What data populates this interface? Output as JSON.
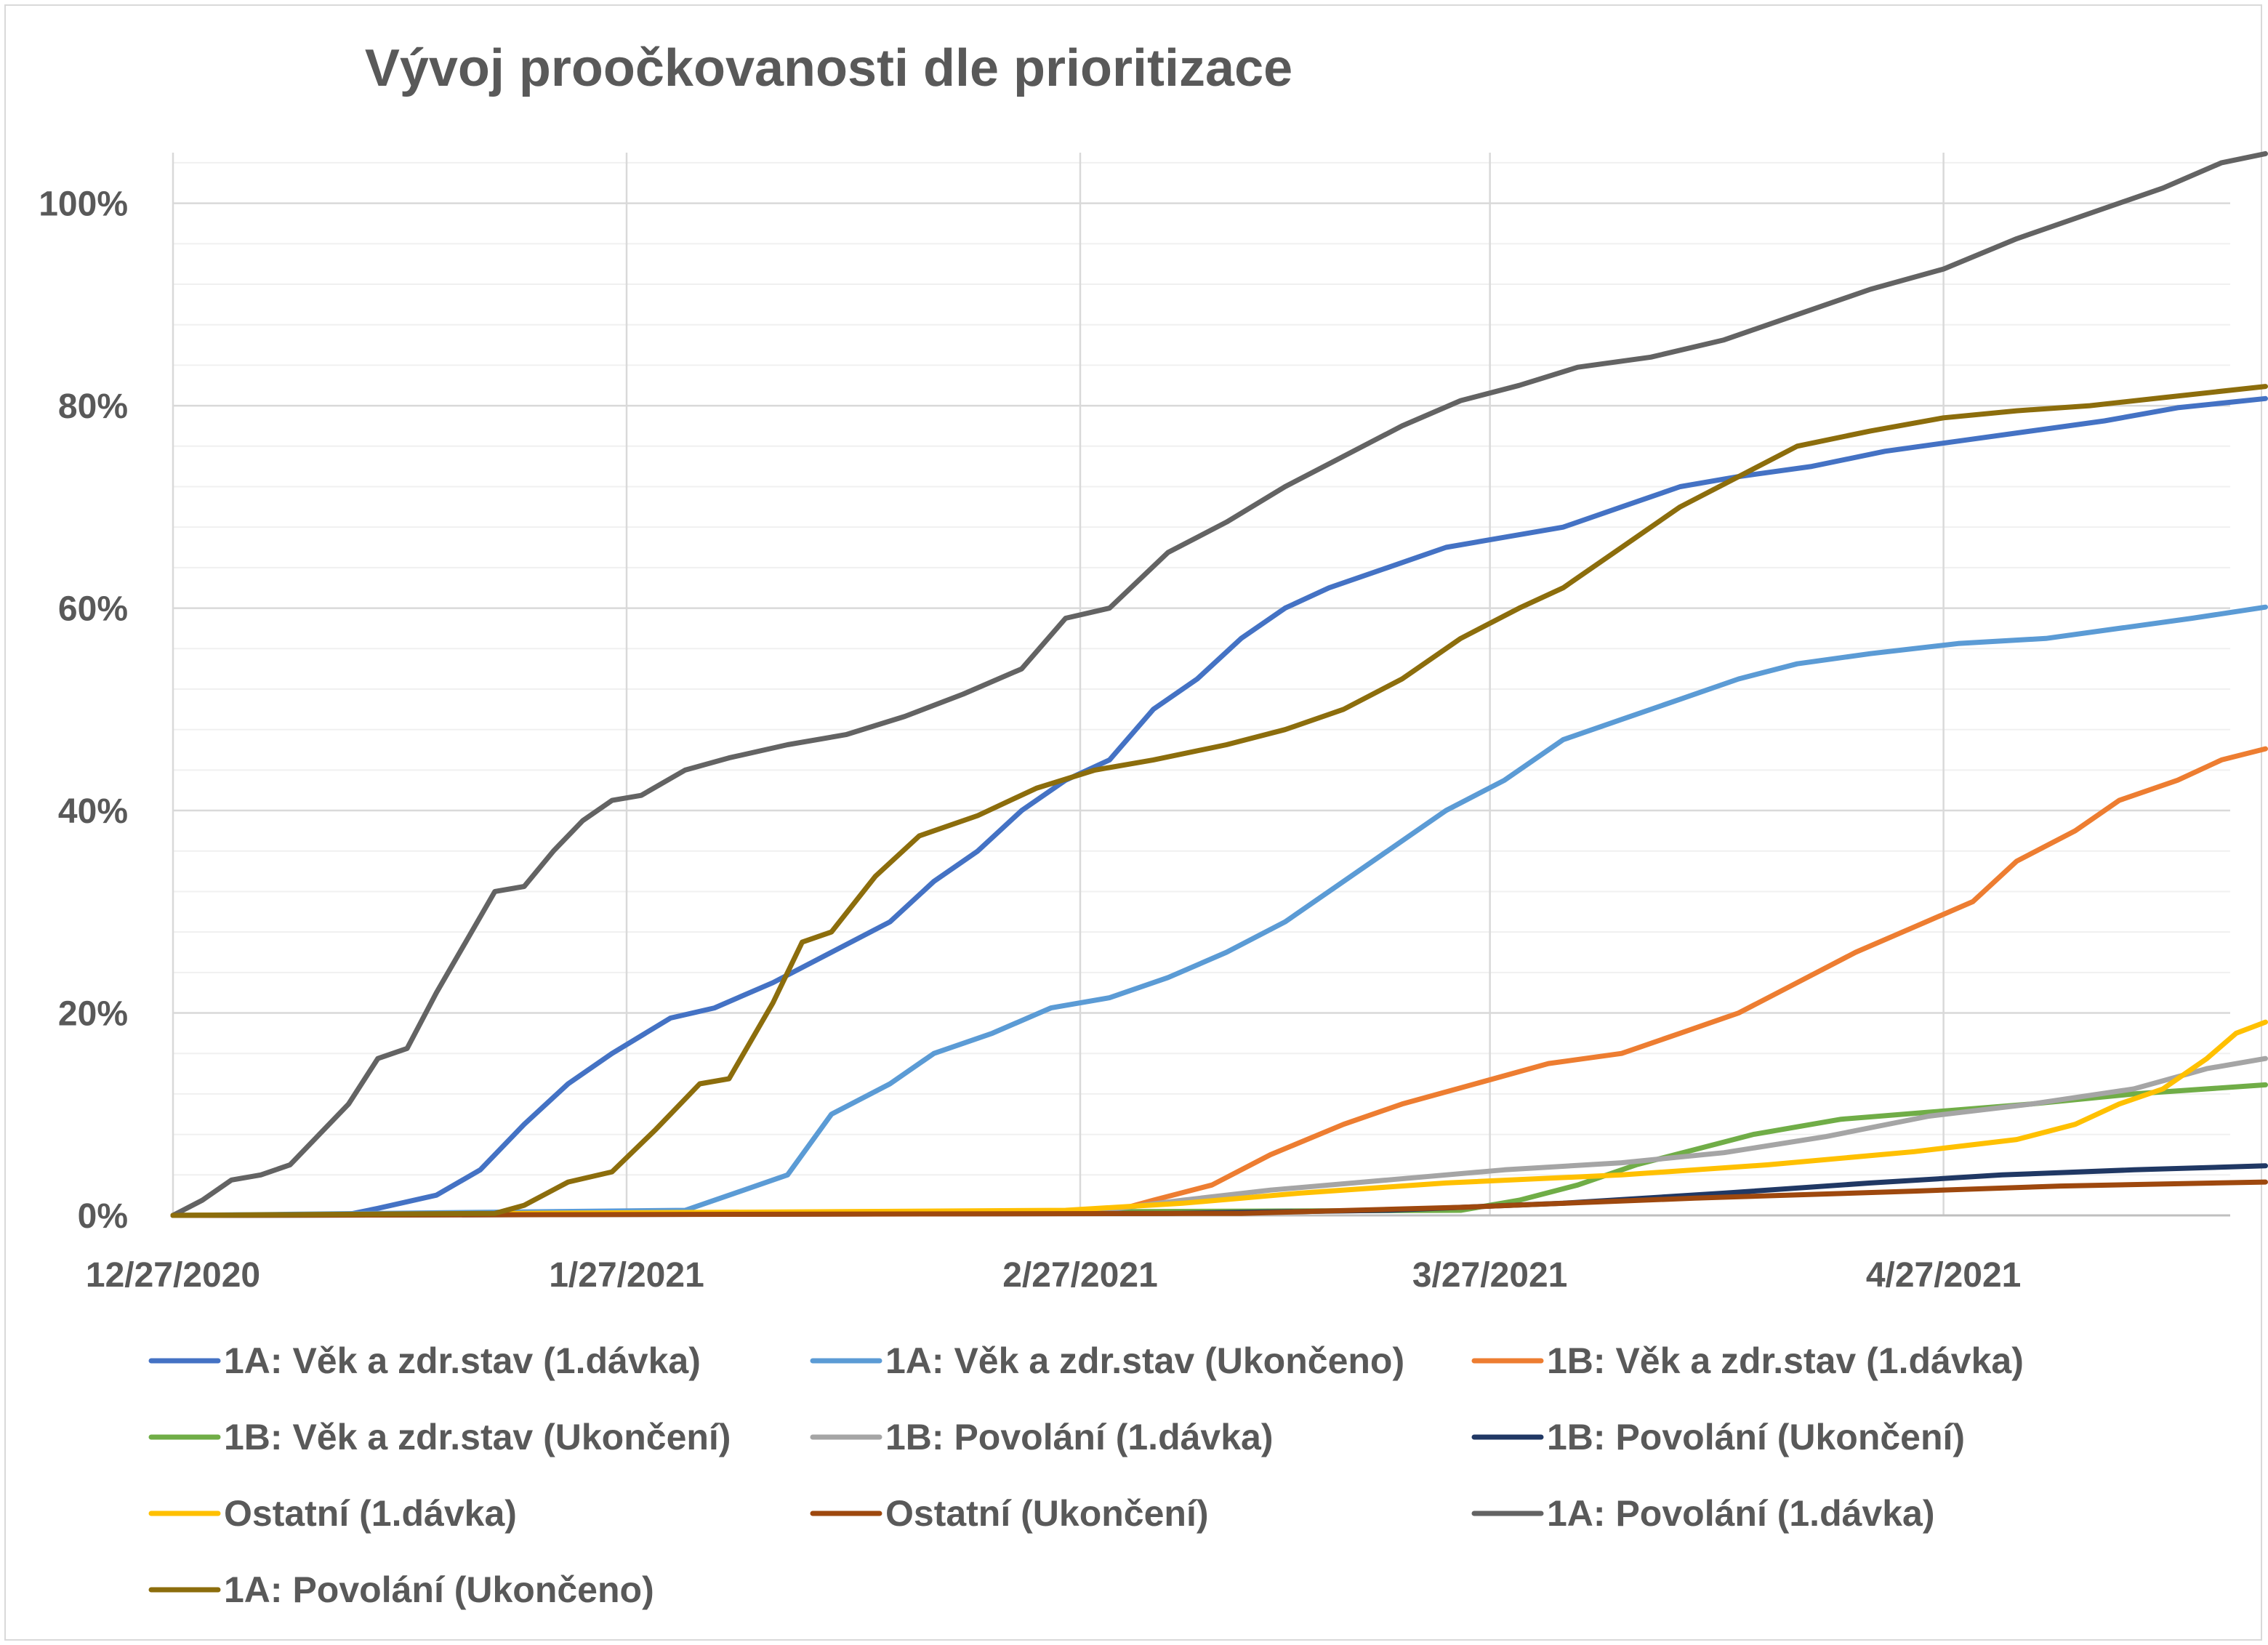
{
  "chart_data": {
    "type": "line",
    "title": "Vývoj proočkovanosti dle prioritizace",
    "xlabel": "",
    "ylabel": "",
    "x_ticks": [
      "12/27/2020",
      "1/27/2021",
      "2/27/2021",
      "3/27/2021",
      "4/27/2021"
    ],
    "x_range": [
      "2020-12-27",
      "2021-05-19"
    ],
    "y_ticks": [
      "0%",
      "20%",
      "40%",
      "60%",
      "80%",
      "100%"
    ],
    "ylim": [
      0,
      1.05
    ],
    "grid": true,
    "legend_position": "bottom",
    "series": [
      {
        "name": "1A: Věk a zdr.stav (1.dávka)",
        "color": "#4472c4",
        "points": [
          [
            "2020-12-27",
            0
          ],
          [
            "2021-01-08",
            0.001
          ],
          [
            "2021-01-10",
            0.007
          ],
          [
            "2021-01-14",
            0.02
          ],
          [
            "2021-01-17",
            0.045
          ],
          [
            "2021-01-20",
            0.09
          ],
          [
            "2021-01-23",
            0.13
          ],
          [
            "2021-01-26",
            0.16
          ],
          [
            "2021-01-30",
            0.195
          ],
          [
            "2021-02-02",
            0.205
          ],
          [
            "2021-02-06",
            0.23
          ],
          [
            "2021-02-10",
            0.26
          ],
          [
            "2021-02-14",
            0.29
          ],
          [
            "2021-02-17",
            0.33
          ],
          [
            "2021-02-20",
            0.36
          ],
          [
            "2021-02-23",
            0.4
          ],
          [
            "2021-02-26",
            0.43
          ],
          [
            "2021-03-01",
            0.45
          ],
          [
            "2021-03-04",
            0.5
          ],
          [
            "2021-03-07",
            0.53
          ],
          [
            "2021-03-10",
            0.57
          ],
          [
            "2021-03-13",
            0.6
          ],
          [
            "2021-03-16",
            0.62
          ],
          [
            "2021-03-20",
            0.64
          ],
          [
            "2021-03-24",
            0.66
          ],
          [
            "2021-03-28",
            0.67
          ],
          [
            "2021-04-01",
            0.68
          ],
          [
            "2021-04-05",
            0.7
          ],
          [
            "2021-04-09",
            0.72
          ],
          [
            "2021-04-13",
            0.73
          ],
          [
            "2021-04-18",
            0.74
          ],
          [
            "2021-04-23",
            0.755
          ],
          [
            "2021-04-28",
            0.765
          ],
          [
            "2021-05-03",
            0.775
          ],
          [
            "2021-05-08",
            0.785
          ],
          [
            "2021-05-13",
            0.798
          ],
          [
            "2021-05-19",
            0.807
          ]
        ]
      },
      {
        "name": "1A: Věk a zdr.stav (Ukončeno)",
        "color": "#5b9bd5",
        "points": [
          [
            "2020-12-27",
            0
          ],
          [
            "2021-01-31",
            0.005
          ],
          [
            "2021-02-03",
            0.02
          ],
          [
            "2021-02-07",
            0.04
          ],
          [
            "2021-02-10",
            0.1
          ],
          [
            "2021-02-14",
            0.13
          ],
          [
            "2021-02-17",
            0.16
          ],
          [
            "2021-02-21",
            0.18
          ],
          [
            "2021-02-25",
            0.205
          ],
          [
            "2021-03-01",
            0.215
          ],
          [
            "2021-03-05",
            0.235
          ],
          [
            "2021-03-09",
            0.26
          ],
          [
            "2021-03-13",
            0.29
          ],
          [
            "2021-03-17",
            0.33
          ],
          [
            "2021-03-20",
            0.36
          ],
          [
            "2021-03-24",
            0.4
          ],
          [
            "2021-03-28",
            0.43
          ],
          [
            "2021-04-01",
            0.47
          ],
          [
            "2021-04-05",
            0.49
          ],
          [
            "2021-04-09",
            0.51
          ],
          [
            "2021-04-13",
            0.53
          ],
          [
            "2021-04-17",
            0.545
          ],
          [
            "2021-04-22",
            0.555
          ],
          [
            "2021-04-28",
            0.565
          ],
          [
            "2021-05-04",
            0.57
          ],
          [
            "2021-05-09",
            0.58
          ],
          [
            "2021-05-14",
            0.59
          ],
          [
            "2021-05-19",
            0.601
          ]
        ]
      },
      {
        "name": "1B: Věk a zdr.stav (1.dávka)",
        "color": "#ed7d31",
        "points": [
          [
            "2020-12-27",
            0
          ],
          [
            "2021-03-01",
            0.003
          ],
          [
            "2021-03-04",
            0.015
          ],
          [
            "2021-03-08",
            0.03
          ],
          [
            "2021-03-12",
            0.06
          ],
          [
            "2021-03-17",
            0.09
          ],
          [
            "2021-03-21",
            0.11
          ],
          [
            "2021-03-26",
            0.13
          ],
          [
            "2021-03-31",
            0.15
          ],
          [
            "2021-04-05",
            0.16
          ],
          [
            "2021-04-09",
            0.18
          ],
          [
            "2021-04-13",
            0.2
          ],
          [
            "2021-04-17",
            0.23
          ],
          [
            "2021-04-21",
            0.26
          ],
          [
            "2021-04-25",
            0.285
          ],
          [
            "2021-04-29",
            0.31
          ],
          [
            "2021-05-02",
            0.35
          ],
          [
            "2021-05-06",
            0.38
          ],
          [
            "2021-05-09",
            0.41
          ],
          [
            "2021-05-13",
            0.43
          ],
          [
            "2021-05-16",
            0.45
          ],
          [
            "2021-05-19",
            0.461
          ]
        ]
      },
      {
        "name": "1B: Věk a zdr.stav (Ukončení)",
        "color": "#70ad47",
        "points": [
          [
            "2020-12-27",
            0
          ],
          [
            "2021-03-25",
            0.005
          ],
          [
            "2021-03-29",
            0.015
          ],
          [
            "2021-04-02",
            0.03
          ],
          [
            "2021-04-06",
            0.05
          ],
          [
            "2021-04-10",
            0.065
          ],
          [
            "2021-04-14",
            0.08
          ],
          [
            "2021-04-20",
            0.095
          ],
          [
            "2021-04-26",
            0.102
          ],
          [
            "2021-05-03",
            0.11
          ],
          [
            "2021-05-10",
            0.12
          ],
          [
            "2021-05-19",
            0.129
          ]
        ]
      },
      {
        "name": "1B: Povolání (1.dávka)",
        "color": "#a5a5a5",
        "points": [
          [
            "2020-12-27",
            0
          ],
          [
            "2021-02-28",
            0.004
          ],
          [
            "2021-03-06",
            0.015
          ],
          [
            "2021-03-12",
            0.025
          ],
          [
            "2021-03-20",
            0.035
          ],
          [
            "2021-03-28",
            0.045
          ],
          [
            "2021-04-05",
            0.052
          ],
          [
            "2021-04-12",
            0.062
          ],
          [
            "2021-04-19",
            0.078
          ],
          [
            "2021-04-26",
            0.098
          ],
          [
            "2021-05-03",
            0.11
          ],
          [
            "2021-05-10",
            0.125
          ],
          [
            "2021-05-15",
            0.145
          ],
          [
            "2021-05-19",
            0.155
          ]
        ]
      },
      {
        "name": "1B: Povolání (Ukončení)",
        "color": "#203864",
        "points": [
          [
            "2020-12-27",
            0
          ],
          [
            "2021-03-05",
            0.002
          ],
          [
            "2021-03-20",
            0.005
          ],
          [
            "2021-04-01",
            0.012
          ],
          [
            "2021-04-12",
            0.022
          ],
          [
            "2021-04-22",
            0.032
          ],
          [
            "2021-05-01",
            0.04
          ],
          [
            "2021-05-10",
            0.045
          ],
          [
            "2021-05-19",
            0.049
          ]
        ]
      },
      {
        "name": "Ostatní (1.dávka)",
        "color": "#ffc000",
        "points": [
          [
            "2020-12-27",
            0
          ],
          [
            "2021-02-26",
            0.005
          ],
          [
            "2021-03-06",
            0.012
          ],
          [
            "2021-03-14",
            0.022
          ],
          [
            "2021-03-24",
            0.032
          ],
          [
            "2021-04-05",
            0.04
          ],
          [
            "2021-04-15",
            0.05
          ],
          [
            "2021-04-25",
            0.063
          ],
          [
            "2021-05-02",
            0.075
          ],
          [
            "2021-05-06",
            0.09
          ],
          [
            "2021-05-09",
            0.11
          ],
          [
            "2021-05-12",
            0.125
          ],
          [
            "2021-05-15",
            0.155
          ],
          [
            "2021-05-17",
            0.18
          ],
          [
            "2021-05-19",
            0.191
          ]
        ]
      },
      {
        "name": "Ostatní (Ukončení)",
        "color": "#9e480e",
        "points": [
          [
            "2020-12-27",
            0
          ],
          [
            "2021-03-10",
            0.002
          ],
          [
            "2021-03-25",
            0.008
          ],
          [
            "2021-04-10",
            0.017
          ],
          [
            "2021-04-25",
            0.024
          ],
          [
            "2021-05-05",
            0.029
          ],
          [
            "2021-05-19",
            0.033
          ]
        ]
      },
      {
        "name": "1A: Povolání (1.dávka)",
        "color": "#636363",
        "points": [
          [
            "2020-12-27",
            0
          ],
          [
            "2020-12-29",
            0.015
          ],
          [
            "2020-12-31",
            0.035
          ],
          [
            "2021-01-02",
            0.04
          ],
          [
            "2021-01-04",
            0.05
          ],
          [
            "2021-01-06",
            0.08
          ],
          [
            "2021-01-08",
            0.11
          ],
          [
            "2021-01-10",
            0.155
          ],
          [
            "2021-01-12",
            0.165
          ],
          [
            "2021-01-14",
            0.22
          ],
          [
            "2021-01-16",
            0.27
          ],
          [
            "2021-01-18",
            0.32
          ],
          [
            "2021-01-20",
            0.325
          ],
          [
            "2021-01-22",
            0.36
          ],
          [
            "2021-01-24",
            0.39
          ],
          [
            "2021-01-26",
            0.41
          ],
          [
            "2021-01-28",
            0.415
          ],
          [
            "2021-01-31",
            0.44
          ],
          [
            "2021-02-03",
            0.452
          ],
          [
            "2021-02-07",
            0.465
          ],
          [
            "2021-02-11",
            0.475
          ],
          [
            "2021-02-15",
            0.493
          ],
          [
            "2021-02-19",
            0.515
          ],
          [
            "2021-02-23",
            0.54
          ],
          [
            "2021-02-26",
            0.59
          ],
          [
            "2021-03-01",
            0.6
          ],
          [
            "2021-03-05",
            0.655
          ],
          [
            "2021-03-09",
            0.685
          ],
          [
            "2021-03-13",
            0.72
          ],
          [
            "2021-03-17",
            0.75
          ],
          [
            "2021-03-21",
            0.78
          ],
          [
            "2021-03-25",
            0.805
          ],
          [
            "2021-03-29",
            0.82
          ],
          [
            "2021-04-02",
            0.838
          ],
          [
            "2021-04-07",
            0.848
          ],
          [
            "2021-04-12",
            0.865
          ],
          [
            "2021-04-17",
            0.89
          ],
          [
            "2021-04-22",
            0.915
          ],
          [
            "2021-04-27",
            0.935
          ],
          [
            "2021-05-02",
            0.965
          ],
          [
            "2021-05-07",
            0.99
          ],
          [
            "2021-05-12",
            1.015
          ],
          [
            "2021-05-16",
            1.04
          ],
          [
            "2021-05-19",
            1.049
          ]
        ]
      },
      {
        "name": "1A: Povolání (Ukončeno)",
        "color": "#8c6d0c",
        "points": [
          [
            "2020-12-27",
            0
          ],
          [
            "2021-01-18",
            0.002
          ],
          [
            "2021-01-20",
            0.01
          ],
          [
            "2021-01-23",
            0.033
          ],
          [
            "2021-01-26",
            0.043
          ],
          [
            "2021-01-29",
            0.085
          ],
          [
            "2021-02-01",
            0.13
          ],
          [
            "2021-02-03",
            0.135
          ],
          [
            "2021-02-06",
            0.21
          ],
          [
            "2021-02-08",
            0.27
          ],
          [
            "2021-02-10",
            0.28
          ],
          [
            "2021-02-13",
            0.335
          ],
          [
            "2021-02-16",
            0.375
          ],
          [
            "2021-02-20",
            0.395
          ],
          [
            "2021-02-24",
            0.422
          ],
          [
            "2021-02-28",
            0.44
          ],
          [
            "2021-03-04",
            0.45
          ],
          [
            "2021-03-09",
            0.465
          ],
          [
            "2021-03-13",
            0.48
          ],
          [
            "2021-03-17",
            0.5
          ],
          [
            "2021-03-21",
            0.53
          ],
          [
            "2021-03-25",
            0.57
          ],
          [
            "2021-03-29",
            0.6
          ],
          [
            "2021-04-01",
            0.62
          ],
          [
            "2021-04-05",
            0.66
          ],
          [
            "2021-04-09",
            0.7
          ],
          [
            "2021-04-13",
            0.73
          ],
          [
            "2021-04-17",
            0.76
          ],
          [
            "2021-04-22",
            0.775
          ],
          [
            "2021-04-27",
            0.788
          ],
          [
            "2021-05-02",
            0.795
          ],
          [
            "2021-05-07",
            0.8
          ],
          [
            "2021-05-12",
            0.808
          ],
          [
            "2021-05-19",
            0.819
          ]
        ]
      }
    ]
  }
}
